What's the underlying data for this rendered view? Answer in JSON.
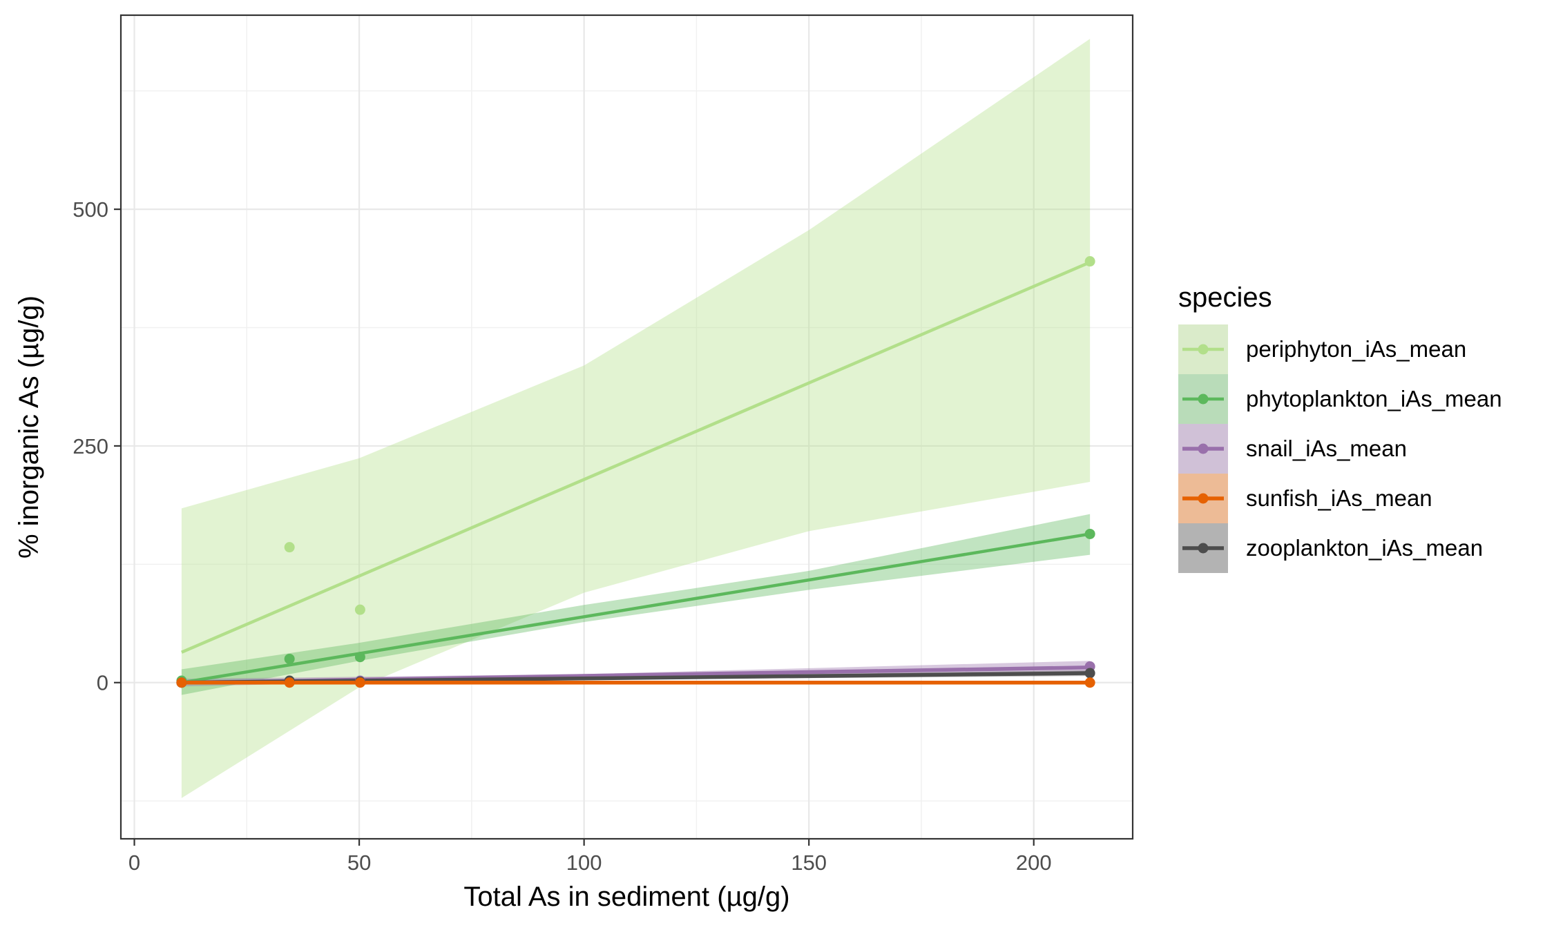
{
  "chart_data": {
    "type": "scatter",
    "title": "",
    "xlabel": "Total As in sediment (µg/g)",
    "ylabel": "% inorganic As (µg/g)",
    "xlim": [
      -3,
      222
    ],
    "ylim": [
      -165,
      705
    ],
    "x_ticks": [
      0,
      50,
      100,
      150,
      200
    ],
    "x_tick_labels": [
      "0",
      "50",
      "100",
      "150",
      "200"
    ],
    "y_ticks": [
      0,
      250,
      500
    ],
    "y_tick_labels": [
      "0",
      "250",
      "500"
    ],
    "grid": true,
    "legend_title": "species",
    "legend_position": "right",
    "series": [
      {
        "name": "periphyton_iAs_mean",
        "color": "#b2df8a",
        "points": [
          [
            10.5,
            0
          ],
          [
            34.5,
            143
          ],
          [
            50.2,
            77
          ],
          [
            212.5,
            445
          ]
        ],
        "fit": [
          [
            10.5,
            32
          ],
          [
            212.5,
            444
          ]
        ],
        "band": [
          [
            10.5,
            184,
            -122
          ],
          [
            50,
            237,
            -5
          ],
          [
            100,
            335,
            95
          ],
          [
            150,
            478,
            160
          ],
          [
            212.5,
            680,
            212
          ]
        ]
      },
      {
        "name": "phytoplankton_iAs_mean",
        "color": "#5cb85c",
        "points": [
          [
            10.5,
            2
          ],
          [
            34.5,
            25
          ],
          [
            50.2,
            27
          ],
          [
            212.5,
            157
          ]
        ],
        "fit": [
          [
            10.5,
            0
          ],
          [
            212.5,
            157
          ]
        ],
        "band": [
          [
            10.5,
            14,
            -13
          ],
          [
            50,
            42,
            23
          ],
          [
            100,
            82,
            64
          ],
          [
            150,
            118,
            98
          ],
          [
            212.5,
            178,
            135
          ]
        ]
      },
      {
        "name": "snail_iAs_mean",
        "color": "#9970ab",
        "points": [
          [
            10.5,
            0
          ],
          [
            34.5,
            1
          ],
          [
            50.2,
            2
          ],
          [
            212.5,
            17
          ]
        ],
        "fit": [
          [
            10.5,
            0
          ],
          [
            212.5,
            16
          ]
        ],
        "band": [
          [
            10.5,
            4,
            -4
          ],
          [
            100,
            9,
            5
          ],
          [
            212.5,
            23,
            11
          ]
        ]
      },
      {
        "name": "sunfish_iAs_mean",
        "color": "#e66101",
        "points": [
          [
            10.5,
            0
          ],
          [
            34.5,
            0
          ],
          [
            50.2,
            0
          ],
          [
            212.5,
            0
          ]
        ],
        "fit": [
          [
            10.5,
            0
          ],
          [
            212.5,
            0
          ]
        ],
        "band": [
          [
            10.5,
            1,
            -1
          ],
          [
            212.5,
            1,
            -1
          ]
        ]
      },
      {
        "name": "zooplankton_iAs_mean",
        "color": "#4d4d4d",
        "points": [
          [
            10.5,
            0
          ],
          [
            34.5,
            2
          ],
          [
            50.2,
            1
          ],
          [
            212.5,
            10
          ]
        ],
        "fit": [
          [
            10.5,
            0
          ],
          [
            212.5,
            10
          ]
        ],
        "band": [
          [
            10.5,
            2,
            -2
          ],
          [
            100,
            6,
            3
          ],
          [
            212.5,
            13,
            7
          ]
        ]
      }
    ]
  }
}
